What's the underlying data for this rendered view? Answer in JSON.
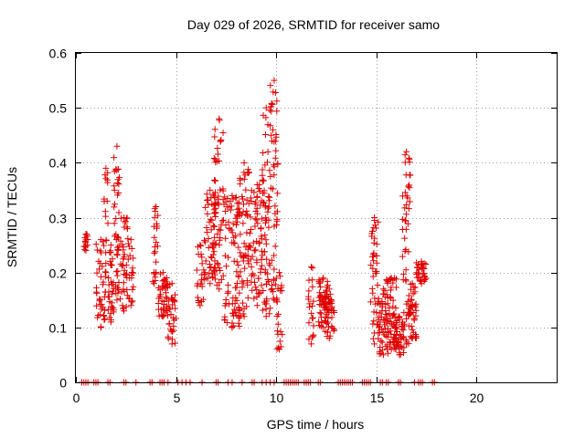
{
  "chart_data": {
    "type": "scatter",
    "title": "Day 029 of 2026, SRMTID for receiver samo",
    "xlabel": "GPS time / hours",
    "ylabel": "SRMTID / TECUs",
    "xlim": [
      0,
      24
    ],
    "ylim": [
      0,
      0.6
    ],
    "xticks": [
      0,
      5,
      10,
      15,
      20
    ],
    "yticks": [
      0,
      0.1,
      0.2,
      0.3,
      0.4,
      0.5,
      0.6
    ],
    "xtick_labels": [
      "0",
      "5",
      "10",
      "15",
      "20"
    ],
    "ytick_labels": [
      "0",
      "0.1",
      "0.2",
      "0.3",
      "0.4",
      "0.5",
      "0.6"
    ],
    "grid": true,
    "marker": "+",
    "marker_color": "#e00000",
    "series": [
      {
        "name": "samo",
        "clusters": [
          {
            "x": [
              0.4,
              0.6
            ],
            "y": [
              0.24,
              0.27
            ],
            "n": 14
          },
          {
            "x": [
              1.0,
              1.5
            ],
            "y": [
              0.1,
              0.26
            ],
            "n": 40
          },
          {
            "x": [
              1.4,
              1.6
            ],
            "y": [
              0.2,
              0.39
            ],
            "n": 14
          },
          {
            "x": [
              1.6,
              1.9
            ],
            "y": [
              0.11,
              0.25
            ],
            "n": 30
          },
          {
            "x": [
              1.9,
              2.2
            ],
            "y": [
              0.15,
              0.43
            ],
            "n": 40
          },
          {
            "x": [
              2.2,
              2.6
            ],
            "y": [
              0.13,
              0.3
            ],
            "n": 36
          },
          {
            "x": [
              2.6,
              2.9
            ],
            "y": [
              0.14,
              0.26
            ],
            "n": 20
          },
          {
            "x": [
              3.8,
              4.0
            ],
            "y": [
              0.18,
              0.2
            ],
            "n": 4
          },
          {
            "x": [
              3.9,
              4.1
            ],
            "y": [
              0.2,
              0.32
            ],
            "n": 16
          },
          {
            "x": [
              4.1,
              4.6
            ],
            "y": [
              0.12,
              0.2
            ],
            "n": 40
          },
          {
            "x": [
              4.6,
              5.0
            ],
            "y": [
              0.07,
              0.18
            ],
            "n": 30
          },
          {
            "x": [
              6.0,
              6.4
            ],
            "y": [
              0.14,
              0.25
            ],
            "n": 20
          },
          {
            "x": [
              6.4,
              7.0
            ],
            "y": [
              0.18,
              0.35
            ],
            "n": 60
          },
          {
            "x": [
              6.9,
              7.4
            ],
            "y": [
              0.17,
              0.48
            ],
            "n": 50
          },
          {
            "x": [
              7.4,
              8.2
            ],
            "y": [
              0.1,
              0.34
            ],
            "n": 70
          },
          {
            "x": [
              8.0,
              8.8
            ],
            "y": [
              0.12,
              0.4
            ],
            "n": 80
          },
          {
            "x": [
              8.8,
              9.3
            ],
            "y": [
              0.14,
              0.36
            ],
            "n": 50
          },
          {
            "x": [
              9.3,
              9.7
            ],
            "y": [
              0.12,
              0.5
            ],
            "n": 60
          },
          {
            "x": [
              9.7,
              10.1
            ],
            "y": [
              0.15,
              0.55
            ],
            "n": 50
          },
          {
            "x": [
              10.0,
              10.3
            ],
            "y": [
              0.06,
              0.2
            ],
            "n": 20
          },
          {
            "x": [
              11.6,
              11.9
            ],
            "y": [
              0.07,
              0.21
            ],
            "n": 20
          },
          {
            "x": [
              12.1,
              12.6
            ],
            "y": [
              0.1,
              0.19
            ],
            "n": 40
          },
          {
            "x": [
              12.4,
              12.9
            ],
            "y": [
              0.08,
              0.17
            ],
            "n": 40
          },
          {
            "x": [
              14.7,
              15.1
            ],
            "y": [
              0.07,
              0.3
            ],
            "n": 40
          },
          {
            "x": [
              15.1,
              15.6
            ],
            "y": [
              0.05,
              0.17
            ],
            "n": 50
          },
          {
            "x": [
              15.5,
              16.0
            ],
            "y": [
              0.06,
              0.19
            ],
            "n": 50
          },
          {
            "x": [
              15.9,
              16.4
            ],
            "y": [
              0.05,
              0.12
            ],
            "n": 40
          },
          {
            "x": [
              16.3,
              16.7
            ],
            "y": [
              0.07,
              0.42
            ],
            "n": 50
          },
          {
            "x": [
              16.6,
              17.0
            ],
            "y": [
              0.08,
              0.18
            ],
            "n": 40
          },
          {
            "x": [
              17.0,
              17.5
            ],
            "y": [
              0.18,
              0.22
            ],
            "n": 30
          }
        ],
        "zero_points_x": [
          0.3,
          0.4,
          0.5,
          0.6,
          0.9,
          1.0,
          1.1,
          1.6,
          1.7,
          2.4,
          2.5,
          3.0,
          3.7,
          3.8,
          4.2,
          4.3,
          4.4,
          4.6,
          5.1,
          5.3,
          5.5,
          5.7,
          6.3,
          7.0,
          7.1,
          7.6,
          7.8,
          8.3,
          8.8,
          8.9,
          9.3,
          9.5,
          9.7,
          9.9,
          10.4,
          10.5,
          10.6,
          10.7,
          10.8,
          10.9,
          11.0,
          11.1,
          11.4,
          11.5,
          11.6,
          11.7,
          12.1,
          12.2,
          13.1,
          13.2,
          13.3,
          13.4,
          13.5,
          13.6,
          13.7,
          13.8,
          14.3,
          14.4,
          14.5,
          14.6,
          14.7,
          15.2,
          15.3,
          15.5,
          15.6,
          16.1,
          16.2,
          16.9,
          17.1,
          17.2,
          17.3,
          17.8,
          17.9
        ]
      }
    ]
  }
}
